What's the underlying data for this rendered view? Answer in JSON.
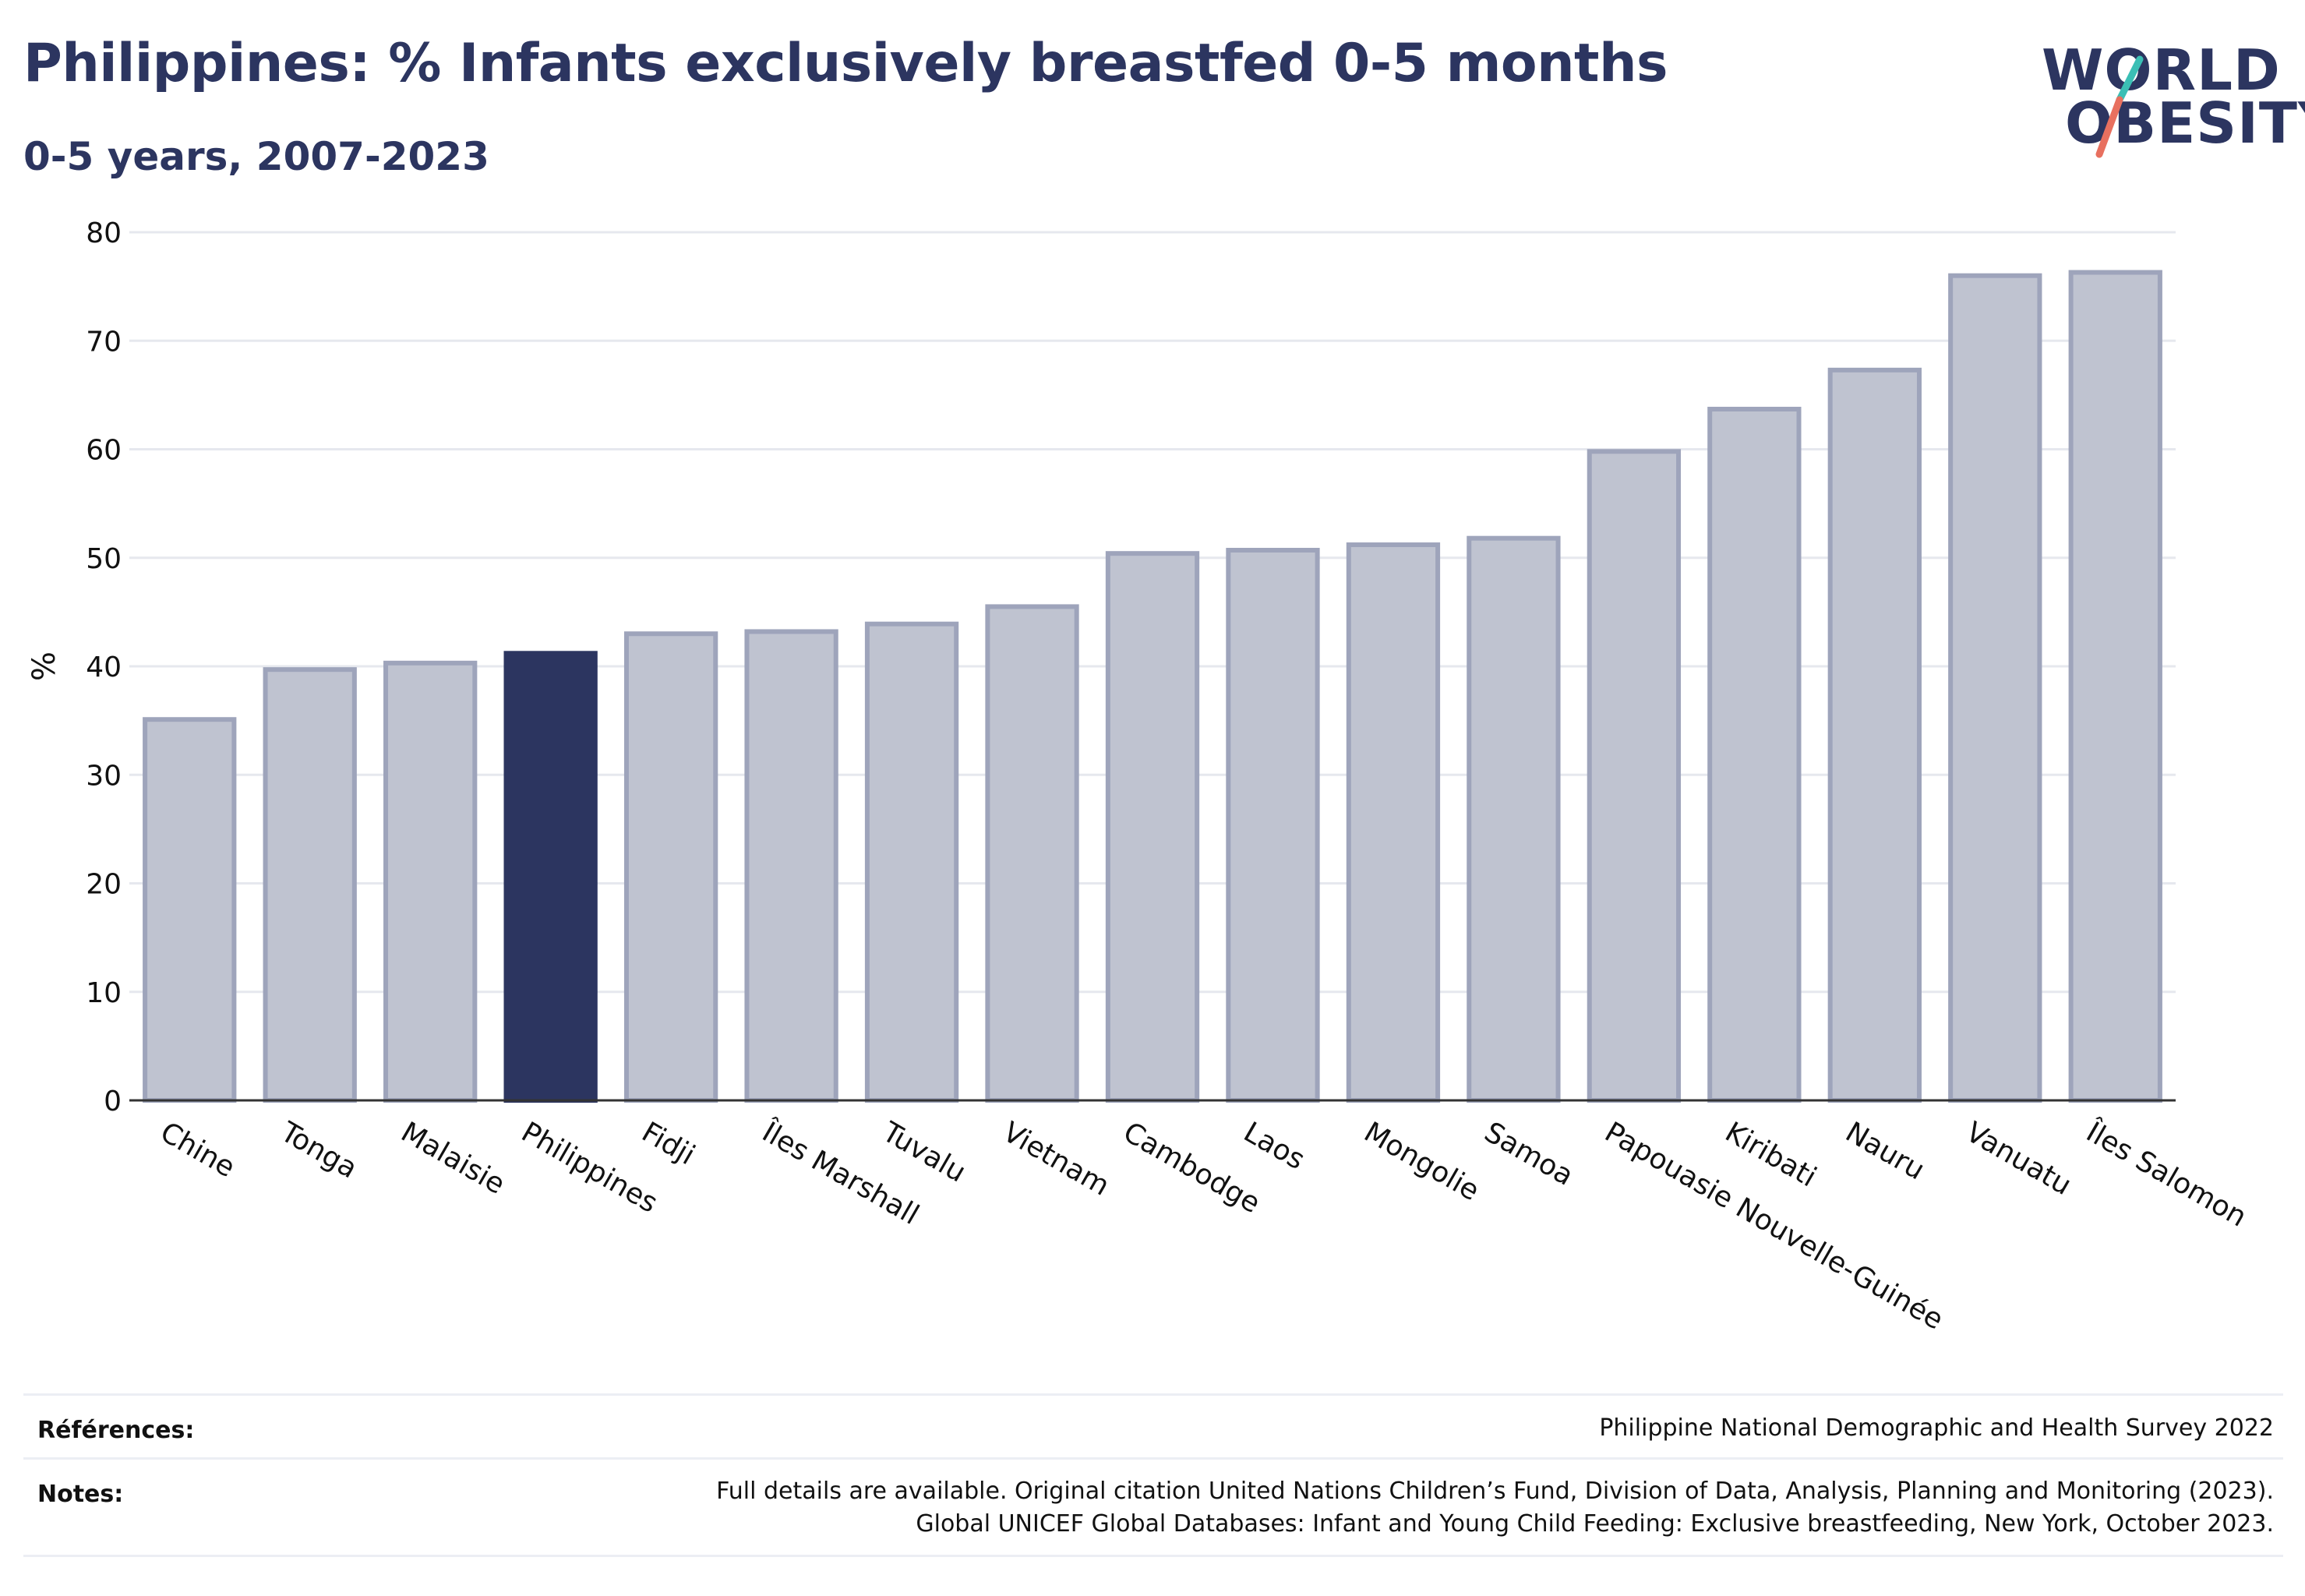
{
  "header": {
    "title": "Philippines: % Infants exclusively breastfed 0-5 months",
    "subtitle": "0-5 years, 2007-2023"
  },
  "logo": {
    "line1": "WORLD",
    "line2": "OBESITY",
    "slash_colors": [
      "#3bbfb5",
      "#e8705f"
    ]
  },
  "colors": {
    "highlight": "#2c3560",
    "bar_fill": "#bfc3d0",
    "bar_edge": "#9ea4bb",
    "grid": "#e6e8ee",
    "axis": "#333333"
  },
  "chart_data": {
    "type": "bar",
    "ylabel": "%",
    "xlabel": "",
    "ylim": [
      0,
      80
    ],
    "yticks": [
      0,
      10,
      20,
      30,
      40,
      50,
      60,
      70,
      80
    ],
    "highlight": "Philippines",
    "grid": true,
    "categories": [
      "Chine",
      "Tonga",
      "Malaisie",
      "Philippines",
      "Fidji",
      "Îles Marshall",
      "Tuvalu",
      "Vietnam",
      "Cambodge",
      "Laos",
      "Mongolie",
      "Samoa",
      "Papouasie Nouvelle-Guinée",
      "Kiribati",
      "Nauru",
      "Vanuatu",
      "Îles Salomon"
    ],
    "values": [
      35.1,
      39.7,
      40.3,
      41.2,
      43.0,
      43.2,
      43.9,
      45.5,
      50.4,
      50.7,
      51.2,
      51.8,
      59.8,
      63.7,
      67.3,
      76.0,
      76.3
    ]
  },
  "footer": {
    "references_label": "Références:",
    "references_text": "Philippine National Demographic and Health Survey 2022",
    "notes_label": "Notes:",
    "notes_line1": "Full details are available. Original citation United Nations Children’s Fund, Division of Data, Analysis, Planning and Monitoring (2023).",
    "notes_line2": "Global UNICEF Global Databases: Infant and Young Child Feeding: Exclusive breastfeeding, New York, October 2023."
  }
}
